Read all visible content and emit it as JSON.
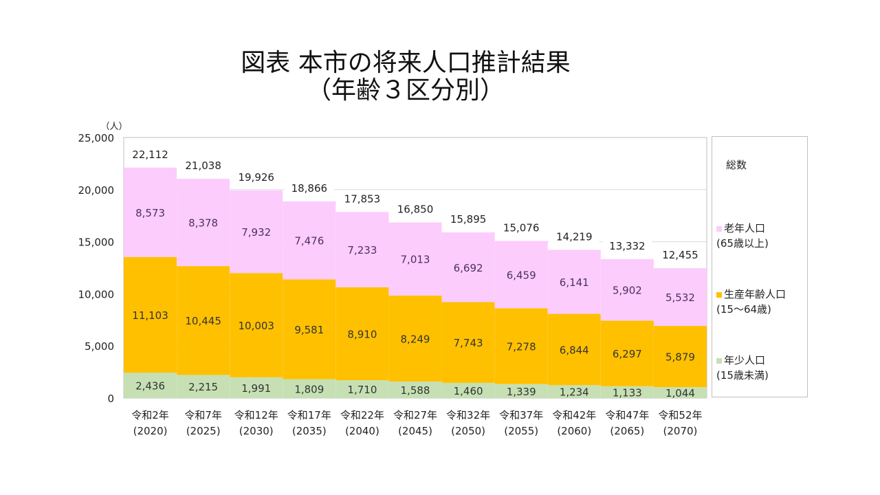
{
  "title": {
    "line1": "図表 本市の将来人口推計結果",
    "line2": "（年齢３区分別）"
  },
  "chart_data": {
    "type": "bar",
    "stacked": true,
    "title": "図表 本市の将来人口推計結果（年齢３区分別）",
    "xlabel": "",
    "ylabel": "（人）",
    "ylim": [
      0,
      25000
    ],
    "yticks": [
      0,
      5000,
      10000,
      15000,
      20000,
      25000
    ],
    "ytick_labels": [
      "0",
      "5,000",
      "10,000",
      "15,000",
      "20,000",
      "25,000"
    ],
    "grid": true,
    "legend_position": "right",
    "categories": [
      [
        "令和2年",
        "(2020)"
      ],
      [
        "令和7年",
        "(2025)"
      ],
      [
        "令和12年",
        "(2030)"
      ],
      [
        "令和17年",
        "(2035)"
      ],
      [
        "令和22年",
        "(2040)"
      ],
      [
        "令和27年",
        "(2045)"
      ],
      [
        "令和32年",
        "(2050)"
      ],
      [
        "令和37年",
        "(2055)"
      ],
      [
        "令和42年",
        "(2060)"
      ],
      [
        "令和47年",
        "(2065)"
      ],
      [
        "令和52年",
        "(2070)"
      ]
    ],
    "series": [
      {
        "name": "年少人口(15歳未満)",
        "label_lines": [
          "年少人口",
          "(15歳未満)"
        ],
        "color": "#c6e0b4",
        "values": [
          2436,
          2215,
          1991,
          1809,
          1710,
          1588,
          1460,
          1339,
          1234,
          1133,
          1044
        ]
      },
      {
        "name": "生産年齢人口(15〜64歳)",
        "label_lines": [
          "生産年齢人口",
          "(15〜64歳)"
        ],
        "color": "#ffc000",
        "values": [
          11103,
          10445,
          10003,
          9581,
          8910,
          8249,
          7743,
          7278,
          6844,
          6297,
          5879
        ]
      },
      {
        "name": "老年人口(65歳以上)",
        "label_lines": [
          "老年人口",
          "(65歳以上)"
        ],
        "color": "#fcccfc",
        "values": [
          8573,
          8378,
          7932,
          7476,
          7233,
          7013,
          6692,
          6459,
          6141,
          5902,
          5532
        ]
      }
    ],
    "totals": {
      "name": "総数",
      "values": [
        22112,
        21038,
        19926,
        18866,
        17853,
        16850,
        15895,
        15076,
        14219,
        13332,
        12455
      ]
    }
  }
}
